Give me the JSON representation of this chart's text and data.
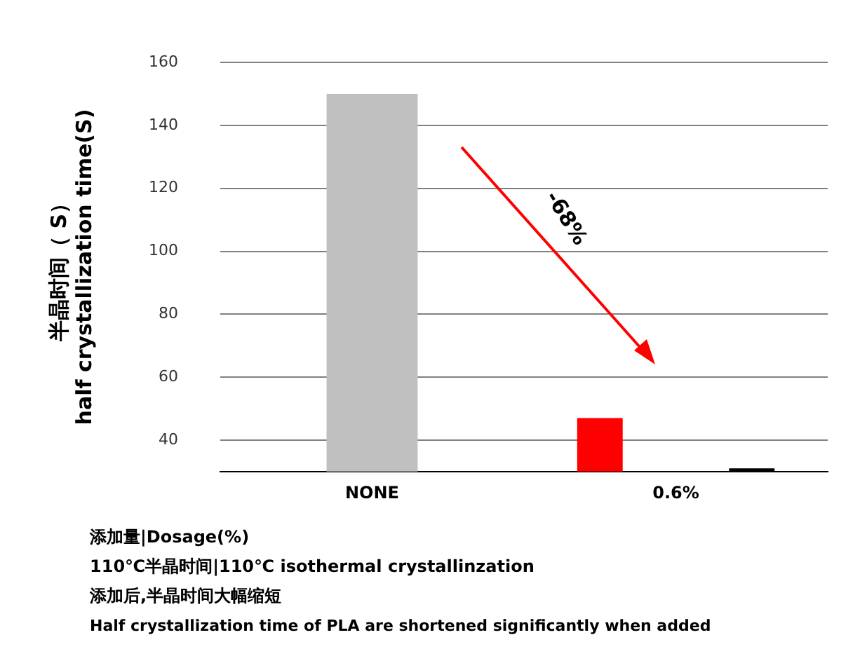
{
  "chart_data": {
    "type": "bar",
    "categories": [
      "NONE",
      "0.6%"
    ],
    "series": [
      {
        "color": "#c0c0c0",
        "values": [
          150,
          null
        ]
      },
      {
        "color": "#ff0000",
        "values": [
          null,
          47
        ]
      },
      {
        "color": "#000000",
        "values": [
          null,
          31
        ]
      }
    ],
    "ylim": [
      30,
      160
    ],
    "yticks": [
      40,
      60,
      80,
      100,
      120,
      140,
      160
    ],
    "grid": "y",
    "legend": false,
    "ylabel": "半晶时间（ S）\nhalf crystallization time(S)",
    "xlabel": "添加量|Dosage(%)",
    "annotations": [
      "-68%",
      "110℃半晶时间|110℃ isothermal crystallinzation",
      "添加后,半晶时间大幅缩短",
      "Half crystallization time of PLA are shortened significantly when added"
    ]
  }
}
